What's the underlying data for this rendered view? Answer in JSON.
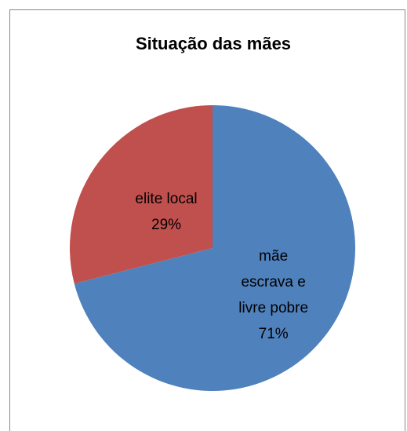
{
  "chart_data": {
    "type": "pie",
    "title": "Situação das mães",
    "categories": [
      "mãe escrava e livre pobre",
      "elite local"
    ],
    "values": [
      71,
      29
    ],
    "value_labels": [
      "71%",
      "29%"
    ],
    "colors": [
      "#4f81bd",
      "#c0504d"
    ]
  }
}
